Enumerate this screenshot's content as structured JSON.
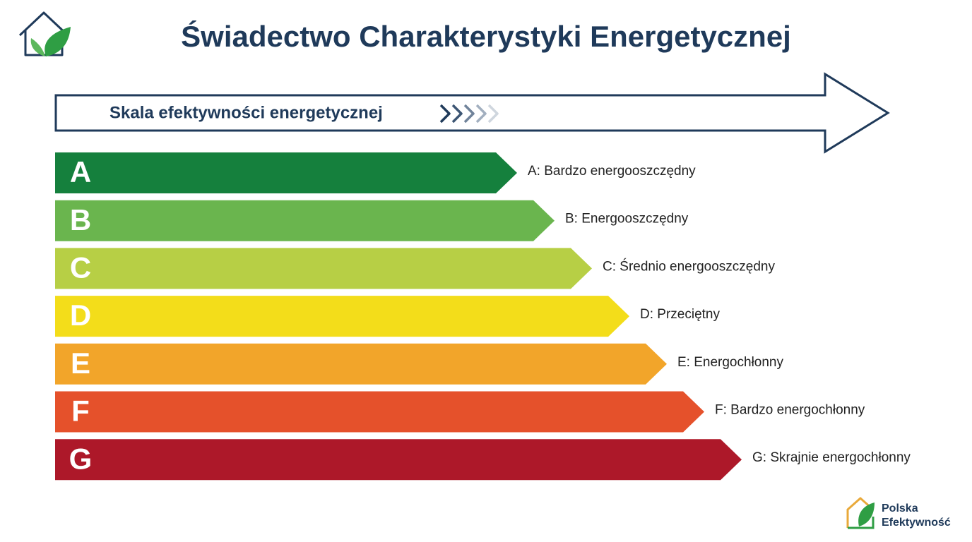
{
  "header": {
    "title": "Świadectwo Charakterystyki Energetycznej"
  },
  "scale": {
    "label": "Skala efektywności energetycznej"
  },
  "classes": [
    {
      "letter": "A",
      "description": "A: Bardzo energooszczędny",
      "color": "#15803d"
    },
    {
      "letter": "B",
      "description": "B: Energooszczędny",
      "color": "#6ab54e"
    },
    {
      "letter": "C",
      "description": "C: Średnio energooszczędny",
      "color": "#b7cf45"
    },
    {
      "letter": "D",
      "description": "D: Przeciętny",
      "color": "#f3dd1a"
    },
    {
      "letter": "E",
      "description": "E: Energochłonny",
      "color": "#f2a52a"
    },
    {
      "letter": "F",
      "description": "F: Bardzo energochłonny",
      "color": "#e5512b"
    },
    {
      "letter": "G",
      "description": "G: Skrajnie energochłonny",
      "color": "#ad1829"
    }
  ],
  "logo": {
    "lines": [
      "Polska",
      "Efektywność"
    ]
  }
}
